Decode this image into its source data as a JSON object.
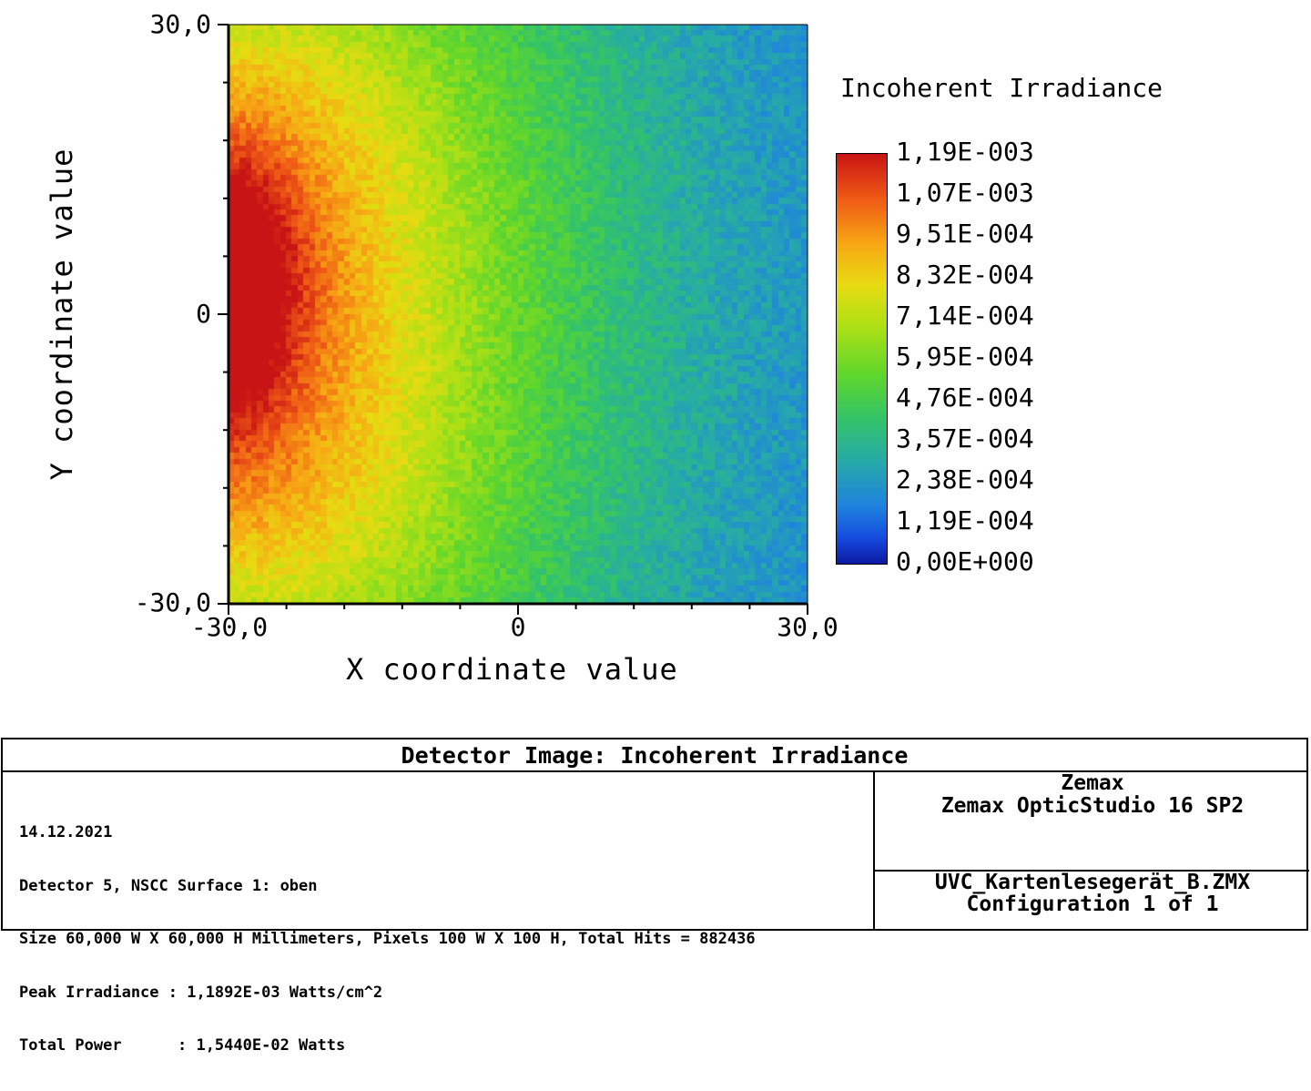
{
  "chart_data": {
    "type": "heatmap",
    "title": "Detector Image: Incoherent Irradiance",
    "xlabel": "X coordinate value",
    "ylabel": "Y coordinate value",
    "xlim": [
      -30.0,
      30.0
    ],
    "ylim": [
      -30.0,
      30.0
    ],
    "x_ticks": [
      "-30,0",
      "0",
      "30,0"
    ],
    "y_ticks": [
      "30,0",
      "0",
      "-30,0"
    ],
    "grid_size": [
      100,
      100
    ],
    "colorbar": {
      "title": "Incoherent Irradiance",
      "min": 0.0,
      "max": 0.00119,
      "labels": [
        "1,19E-003",
        "1,07E-003",
        "9,51E-004",
        "8,32E-004",
        "7,14E-004",
        "5,95E-004",
        "4,76E-004",
        "3,57E-004",
        "2,38E-004",
        "1,19E-004",
        "0,00E+000"
      ]
    },
    "grid": false
  },
  "footer": {
    "title": "Detector Image: Incoherent Irradiance",
    "lines": [
      "14.12.2021",
      "Detector 5, NSCC Surface 1: oben",
      "Size 60,000 W X 60,000 H Millimeters, Pixels 100 W X 100 H, Total Hits = 882436",
      "Peak Irradiance : 1,1892E-03 Watts/cm^2",
      "Total Power      : 1,5440E-02 Watts"
    ],
    "company": "Zemax",
    "product": "Zemax OpticStudio 16 SP2",
    "file": "UVC_Kartenlesegerät_B.ZMX",
    "config": "Configuration 1 of 1"
  }
}
